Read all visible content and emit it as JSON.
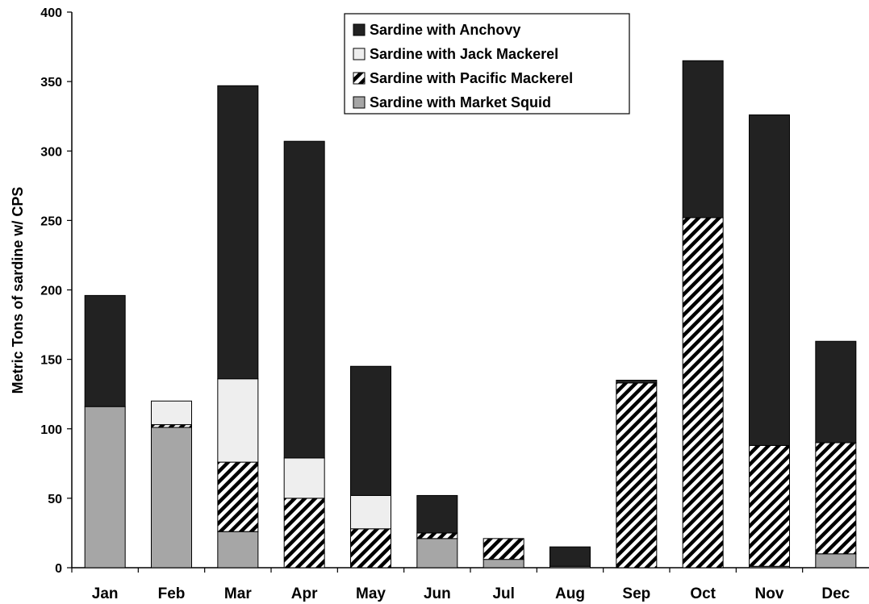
{
  "chart_data": {
    "type": "bar",
    "stacked": true,
    "title": "",
    "xlabel": "",
    "ylabel": "Metric Tons of sardine w/ CPS",
    "ylim": [
      0,
      400
    ],
    "yticks": [
      0,
      50,
      100,
      150,
      200,
      250,
      300,
      350,
      400
    ],
    "grid": false,
    "legend_position": "top-center",
    "categories": [
      "Jan",
      "Feb",
      "Mar",
      "Apr",
      "May",
      "Jun",
      "Jul",
      "Aug",
      "Sep",
      "Oct",
      "Nov",
      "Dec"
    ],
    "series": [
      {
        "name": "Sardine with Market Squid",
        "pattern": "gray",
        "color": "#a6a6a6",
        "values": [
          116,
          101,
          26,
          0,
          0,
          21,
          6,
          1,
          0,
          0,
          1,
          10
        ]
      },
      {
        "name": "Sardine with Pacific Mackerel",
        "pattern": "diagonal-hatch",
        "color": "#000000",
        "values": [
          0,
          2,
          50,
          50,
          28,
          4,
          15,
          0,
          133,
          252,
          87,
          80
        ]
      },
      {
        "name": "Sardine with Jack Mackerel",
        "pattern": "light-gray",
        "color": "#eeeeee",
        "values": [
          0,
          17,
          60,
          29,
          24,
          0,
          0,
          0,
          0,
          0,
          0,
          0
        ]
      },
      {
        "name": "Sardine with Anchovy",
        "pattern": "dark",
        "color": "#222222",
        "values": [
          80,
          0,
          211,
          228,
          93,
          27,
          0,
          14,
          2,
          113,
          238,
          73
        ]
      }
    ],
    "legend_order": [
      "Sardine with Anchovy",
      "Sardine with Jack Mackerel",
      "Sardine with Pacific Mackerel",
      "Sardine with Market Squid"
    ]
  }
}
